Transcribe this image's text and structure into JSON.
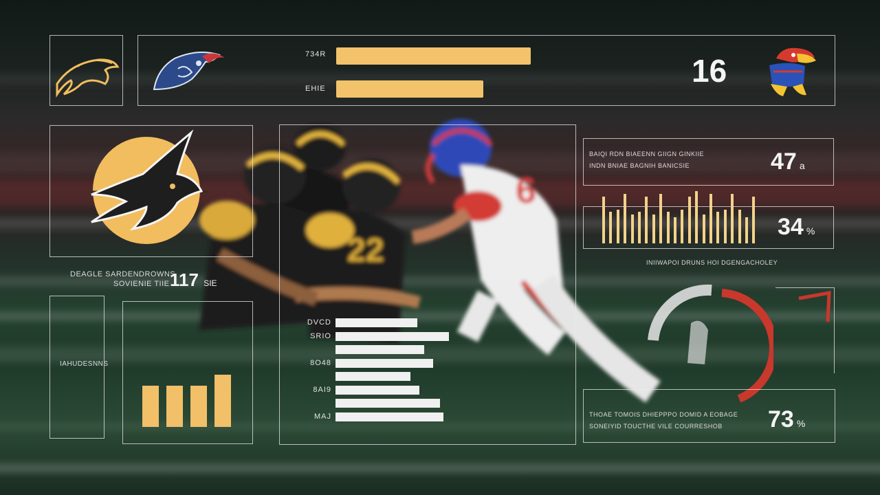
{
  "top_bar": {
    "bar1_label": "734R",
    "bar1_value": 0.82,
    "bar2_label": "EHIE",
    "bar2_value": 0.62,
    "score": "16"
  },
  "left_panel": {
    "caption_line1": "DEAGLE SARDENDROWNS",
    "caption_line2": "SOVIENIE TIIE",
    "stat_value": "117",
    "stat_unit": "SIE",
    "side_text": "IAHUDESNNS"
  },
  "right_stats": {
    "header_line1": "BAIQI RDN BIAEENN GIIGN GINKIIE",
    "header_line2": "INDN BNIAE BAGNIH BANICSIE",
    "stat1_value": "47",
    "stat1_unit": "a",
    "stat2_value": "34",
    "stat2_unit": "%",
    "chart_caption": "INIIWAPOI DRUNS HOI DGENGACHOLEY",
    "footer_line1": "THOAE TOMOIS DHIEPPPO DOMID A EOBAGE",
    "footer_line2": "SONEIYID TOUCTHE VILE COURRESHOB",
    "stat3_value": "73",
    "stat3_unit": "%",
    "gauge_value": 0.55
  },
  "center_list": {
    "rows": [
      {
        "label": "DVCD",
        "value": 0.72
      },
      {
        "label": "SRIO",
        "value": 1.0
      },
      {
        "label": "",
        "value": 0.78
      },
      {
        "label": "8O48",
        "value": 0.86
      },
      {
        "label": "",
        "value": 0.66
      },
      {
        "label": "8AI9",
        "value": 0.74
      },
      {
        "label": "",
        "value": 0.92
      },
      {
        "label": "MAJ",
        "value": 0.95
      }
    ]
  },
  "bottom_left_bars": [
    0.75,
    0.75,
    0.75,
    0.95
  ],
  "mini_bars": [
    0.9,
    0.6,
    0.65,
    0.95,
    0.55,
    0.6,
    0.9,
    0.55,
    0.95,
    0.6,
    0.5,
    0.65,
    0.9,
    1.0,
    0.55,
    0.95,
    0.6,
    0.65,
    0.95,
    0.65,
    0.5,
    0.9
  ],
  "colors": {
    "gold": "#f1bd5e",
    "gauge_red": "#c8382c",
    "panel_line": "#ebebeb"
  },
  "icons": [
    "buffalo-logo-icon",
    "bird-logo-icon",
    "jayhawk-logo-icon",
    "hawk-emblem-icon",
    "corner-arrow-icon"
  ]
}
